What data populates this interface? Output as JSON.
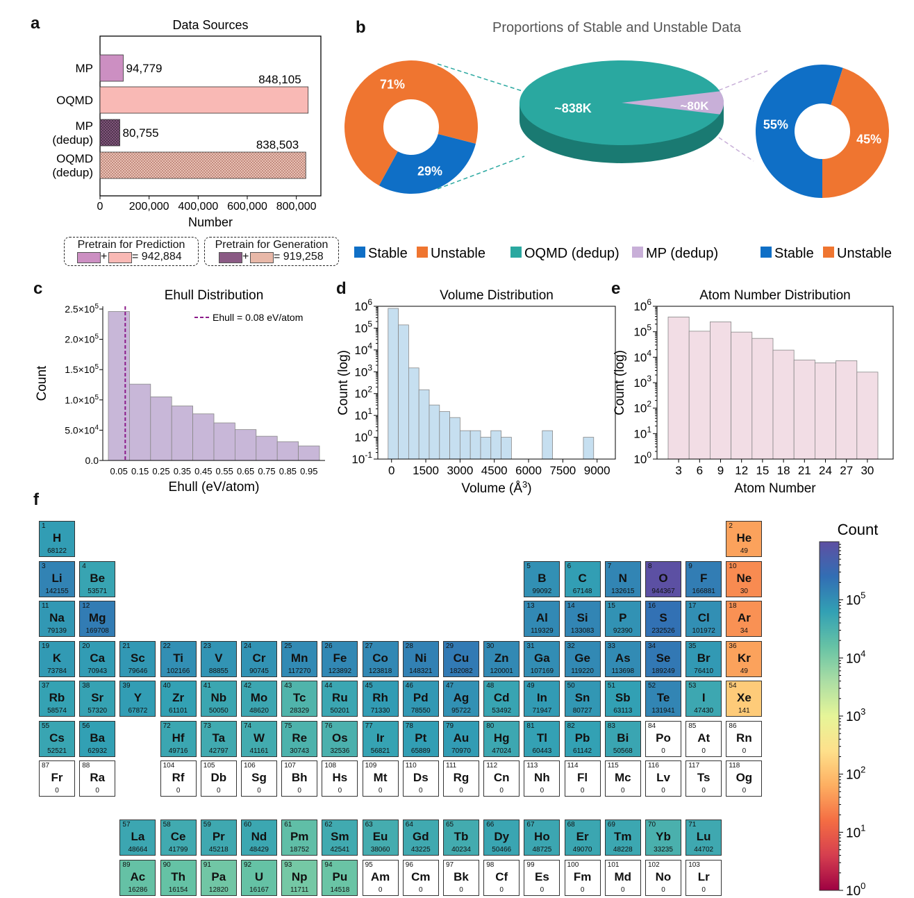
{
  "panel_labels": {
    "a": "a",
    "b": "b",
    "c": "c",
    "d": "d",
    "e": "e",
    "f": "f"
  },
  "chart_data": [
    {
      "id": "a",
      "type": "bar",
      "orientation": "horizontal",
      "title": "Data Sources",
      "categories": [
        "MP",
        "OQMD",
        "MP\n(dedup)",
        "OQMD\n(dedup)"
      ],
      "values": [
        94779,
        848105,
        80755,
        838503
      ],
      "value_labels": [
        "94,779",
        "848,105",
        "80,755",
        "838,503"
      ],
      "colors": [
        "#cc8fc2",
        "#f9b9b5",
        "#8a5a84",
        "#e8b8a8"
      ],
      "xlabel": "Number",
      "xlim": [
        0,
        900000
      ],
      "xticks": [
        0,
        200000,
        400000,
        600000,
        800000
      ],
      "xtick_labels": [
        "0",
        "200,000",
        "400,000",
        "600,000",
        "800,000"
      ],
      "legend": [
        {
          "title": "Pretrain for Prediction",
          "formula": "= 942,884"
        },
        {
          "title": "Pretrain for Generation",
          "formula": "= 919,258"
        }
      ]
    },
    {
      "id": "b",
      "type": "pie",
      "title": "Proportions of Stable and Unstable Data",
      "center": {
        "slices": [
          {
            "name": "OQMD (dedup)",
            "label": "~838K",
            "value": 838503,
            "color": "#2aa8a0"
          },
          {
            "name": "MP (dedup)",
            "label": "~80K",
            "value": 80755,
            "color": "#c8afd8"
          }
        ]
      },
      "left_donut": {
        "slices": [
          {
            "name": "Stable",
            "label": "29%",
            "value": 29,
            "color": "#0f6fc6"
          },
          {
            "name": "Unstable",
            "label": "71%",
            "value": 71,
            "color": "#ef7530"
          }
        ]
      },
      "right_donut": {
        "slices": [
          {
            "name": "Stable",
            "label": "55%",
            "value": 55,
            "color": "#0f6fc6"
          },
          {
            "name": "Unstable",
            "label": "45%",
            "value": 45,
            "color": "#ef7530"
          }
        ]
      },
      "legend": [
        {
          "label": "Stable",
          "color": "#0f6fc6"
        },
        {
          "label": "Unstable",
          "color": "#ef7530"
        },
        {
          "label": "OQMD (dedup)",
          "color": "#2aa8a0"
        },
        {
          "label": "MP (dedup)",
          "color": "#c8afd8"
        },
        {
          "label": "Stable",
          "color": "#0f6fc6"
        },
        {
          "label": "Unstable",
          "color": "#ef7530"
        }
      ]
    },
    {
      "id": "c",
      "type": "bar",
      "title": "Ehull Distribution",
      "xlabel": "Ehull (eV/atom)",
      "ylabel": "Count",
      "categories": [
        "0.05",
        "0.15",
        "0.25",
        "0.35",
        "0.45",
        "0.55",
        "0.65",
        "0.75",
        "0.85",
        "0.95"
      ],
      "values": [
        246000,
        126000,
        105000,
        90000,
        77000,
        62000,
        51000,
        40000,
        31000,
        24000
      ],
      "ylim": [
        0,
        250000
      ],
      "yticks": [
        0,
        50000,
        100000,
        150000,
        200000,
        250000
      ],
      "ytick_labels": [
        {
          "m": "0.0",
          "e": ""
        },
        {
          "m": "5.0×10",
          "e": "4"
        },
        {
          "m": "1.0×10",
          "e": "5"
        },
        {
          "m": "1.5×10",
          "e": "5"
        },
        {
          "m": "2.0×10",
          "e": "5"
        },
        {
          "m": "2.5×10",
          "e": "5"
        }
      ],
      "threshold": {
        "value": 0.08,
        "label": "Ehull = 0.08 eV/atom",
        "color": "#8b1a89"
      },
      "color": "#c8b7d8"
    },
    {
      "id": "d",
      "type": "bar",
      "title": "Volume Distribution",
      "yscale": "log",
      "xlabel": "Volume (Å",
      "xlabel_sup": "3",
      "xlabel_end": ")",
      "ylabel": "Count (log)",
      "bin_edges": [
        -150,
        300,
        750,
        1200,
        1650,
        2100,
        2550,
        3000,
        3450,
        3900,
        4350,
        4800,
        5250,
        5700,
        6150,
        6600,
        7050,
        7500,
        7950,
        8400,
        8850,
        9300
      ],
      "values": [
        800000,
        140000,
        1500,
        150,
        30,
        15,
        8,
        2,
        2,
        1,
        2,
        1,
        0,
        0,
        0,
        2,
        0,
        0,
        0,
        1,
        0
      ],
      "xlim": [
        -600,
        9800
      ],
      "xticks": [
        0,
        1500,
        3000,
        4500,
        6000,
        7500,
        9000
      ],
      "ylim_exp": [
        -1,
        6
      ],
      "color": "#c6dff0"
    },
    {
      "id": "e",
      "type": "bar",
      "title": "Atom Number Distribution",
      "yscale": "log",
      "xlabel": "Atom Number",
      "ylabel": "Count (log)",
      "categories": [
        "3",
        "6",
        "9",
        "12",
        "15",
        "18",
        "21",
        "24",
        "27",
        "30"
      ],
      "values": [
        380000,
        105000,
        245000,
        97000,
        55000,
        19000,
        7800,
        6000,
        7300,
        2600
      ],
      "ylim_exp": [
        0,
        6
      ],
      "color": "#f2dde5"
    },
    {
      "id": "f",
      "type": "heatmap",
      "title": "Count",
      "colorbar": {
        "label": "Count",
        "scale": "log",
        "min_exp": 0,
        "max_exp": 6
      },
      "elements": [
        [
          1,
          "H",
          1,
          1,
          68122
        ],
        [
          2,
          "He",
          1,
          18,
          49
        ],
        [
          3,
          "Li",
          2,
          1,
          142155
        ],
        [
          4,
          "Be",
          2,
          2,
          53571
        ],
        [
          5,
          "B",
          2,
          13,
          99092
        ],
        [
          6,
          "C",
          2,
          14,
          67148
        ],
        [
          7,
          "N",
          2,
          15,
          132615
        ],
        [
          8,
          "O",
          2,
          16,
          944367
        ],
        [
          9,
          "F",
          2,
          17,
          166881
        ],
        [
          10,
          "Ne",
          2,
          18,
          30
        ],
        [
          11,
          "Na",
          3,
          1,
          79139
        ],
        [
          12,
          "Mg",
          3,
          2,
          169708
        ],
        [
          13,
          "Al",
          3,
          13,
          119329
        ],
        [
          14,
          "Si",
          3,
          14,
          133083
        ],
        [
          15,
          "P",
          3,
          15,
          92390
        ],
        [
          16,
          "S",
          3,
          16,
          232526
        ],
        [
          17,
          "Cl",
          3,
          17,
          101972
        ],
        [
          18,
          "Ar",
          3,
          18,
          34
        ],
        [
          19,
          "K",
          4,
          1,
          73784
        ],
        [
          20,
          "Ca",
          4,
          2,
          70943
        ],
        [
          21,
          "Sc",
          4,
          3,
          79646
        ],
        [
          22,
          "Ti",
          4,
          4,
          102166
        ],
        [
          23,
          "V",
          4,
          5,
          88855
        ],
        [
          24,
          "Cr",
          4,
          6,
          90745
        ],
        [
          25,
          "Mn",
          4,
          7,
          117270
        ],
        [
          26,
          "Fe",
          4,
          8,
          123892
        ],
        [
          27,
          "Co",
          4,
          9,
          123818
        ],
        [
          28,
          "Ni",
          4,
          10,
          148321
        ],
        [
          29,
          "Cu",
          4,
          11,
          182082
        ],
        [
          30,
          "Zn",
          4,
          12,
          120001
        ],
        [
          31,
          "Ga",
          4,
          13,
          107169
        ],
        [
          32,
          "Ge",
          4,
          14,
          119220
        ],
        [
          33,
          "As",
          4,
          15,
          113698
        ],
        [
          34,
          "Se",
          4,
          16,
          189249
        ],
        [
          35,
          "Br",
          4,
          17,
          76410
        ],
        [
          36,
          "Kr",
          4,
          18,
          49
        ],
        [
          37,
          "Rb",
          5,
          1,
          58574
        ],
        [
          38,
          "Sr",
          5,
          2,
          57320
        ],
        [
          39,
          "Y",
          5,
          3,
          67872
        ],
        [
          40,
          "Zr",
          5,
          4,
          61101
        ],
        [
          41,
          "Nb",
          5,
          5,
          50050
        ],
        [
          42,
          "Mo",
          5,
          6,
          48620
        ],
        [
          43,
          "Tc",
          5,
          7,
          28329
        ],
        [
          44,
          "Ru",
          5,
          8,
          50201
        ],
        [
          45,
          "Rh",
          5,
          9,
          71330
        ],
        [
          46,
          "Pd",
          5,
          10,
          78550
        ],
        [
          47,
          "Ag",
          5,
          11,
          95722
        ],
        [
          48,
          "Cd",
          5,
          12,
          53492
        ],
        [
          49,
          "In",
          5,
          13,
          71947
        ],
        [
          50,
          "Sn",
          5,
          14,
          80727
        ],
        [
          51,
          "Sb",
          5,
          15,
          63113
        ],
        [
          52,
          "Te",
          5,
          16,
          131941
        ],
        [
          53,
          "I",
          5,
          17,
          47430
        ],
        [
          54,
          "Xe",
          5,
          18,
          141
        ],
        [
          55,
          "Cs",
          6,
          1,
          52521
        ],
        [
          56,
          "Ba",
          6,
          2,
          62932
        ],
        [
          72,
          "Hf",
          6,
          4,
          49716
        ],
        [
          73,
          "Ta",
          6,
          5,
          42797
        ],
        [
          74,
          "W",
          6,
          6,
          41161
        ],
        [
          75,
          "Re",
          6,
          7,
          30743
        ],
        [
          76,
          "Os",
          6,
          8,
          32536
        ],
        [
          77,
          "Ir",
          6,
          9,
          56821
        ],
        [
          78,
          "Pt",
          6,
          10,
          65889
        ],
        [
          79,
          "Au",
          6,
          11,
          70970
        ],
        [
          80,
          "Hg",
          6,
          12,
          47024
        ],
        [
          81,
          "Tl",
          6,
          13,
          60443
        ],
        [
          82,
          "Pb",
          6,
          14,
          61142
        ],
        [
          83,
          "Bi",
          6,
          15,
          50568
        ],
        [
          84,
          "Po",
          6,
          16,
          0
        ],
        [
          85,
          "At",
          6,
          17,
          0
        ],
        [
          86,
          "Rn",
          6,
          18,
          0
        ],
        [
          87,
          "Fr",
          7,
          1,
          0
        ],
        [
          88,
          "Ra",
          7,
          2,
          0
        ],
        [
          104,
          "Rf",
          7,
          4,
          0
        ],
        [
          105,
          "Db",
          7,
          5,
          0
        ],
        [
          106,
          "Sg",
          7,
          6,
          0
        ],
        [
          107,
          "Bh",
          7,
          7,
          0
        ],
        [
          108,
          "Hs",
          7,
          8,
          0
        ],
        [
          109,
          "Mt",
          7,
          9,
          0
        ],
        [
          110,
          "Ds",
          7,
          10,
          0
        ],
        [
          111,
          "Rg",
          7,
          11,
          0
        ],
        [
          112,
          "Cn",
          7,
          12,
          0
        ],
        [
          113,
          "Nh",
          7,
          13,
          0
        ],
        [
          114,
          "Fl",
          7,
          14,
          0
        ],
        [
          115,
          "Mc",
          7,
          15,
          0
        ],
        [
          116,
          "Lv",
          7,
          16,
          0
        ],
        [
          117,
          "Ts",
          7,
          17,
          0
        ],
        [
          118,
          "Og",
          7,
          18,
          0
        ],
        [
          57,
          "La",
          9,
          3,
          48664
        ],
        [
          58,
          "Ce",
          9,
          4,
          41799
        ],
        [
          59,
          "Pr",
          9,
          5,
          45218
        ],
        [
          60,
          "Nd",
          9,
          6,
          48429
        ],
        [
          61,
          "Pm",
          9,
          7,
          18752
        ],
        [
          62,
          "Sm",
          9,
          8,
          42541
        ],
        [
          63,
          "Eu",
          9,
          9,
          38060
        ],
        [
          64,
          "Gd",
          9,
          10,
          43225
        ],
        [
          65,
          "Tb",
          9,
          11,
          40234
        ],
        [
          66,
          "Dy",
          9,
          12,
          50466
        ],
        [
          67,
          "Ho",
          9,
          13,
          48725
        ],
        [
          68,
          "Er",
          9,
          14,
          49070
        ],
        [
          69,
          "Tm",
          9,
          15,
          48228
        ],
        [
          70,
          "Yb",
          9,
          16,
          33235
        ],
        [
          71,
          "Lu",
          9,
          17,
          44702
        ],
        [
          89,
          "Ac",
          10,
          3,
          16286
        ],
        [
          90,
          "Th",
          10,
          4,
          16154
        ],
        [
          91,
          "Pa",
          10,
          5,
          12820
        ],
        [
          92,
          "U",
          10,
          6,
          16167
        ],
        [
          93,
          "Np",
          10,
          7,
          11711
        ],
        [
          94,
          "Pu",
          10,
          8,
          14518
        ],
        [
          95,
          "Am",
          10,
          9,
          0
        ],
        [
          96,
          "Cm",
          10,
          10,
          0
        ],
        [
          97,
          "Bk",
          10,
          11,
          0
        ],
        [
          98,
          "Cf",
          10,
          12,
          0
        ],
        [
          99,
          "Es",
          10,
          13,
          0
        ],
        [
          100,
          "Fm",
          10,
          14,
          0
        ],
        [
          101,
          "Md",
          10,
          15,
          0
        ],
        [
          102,
          "No",
          10,
          16,
          0
        ],
        [
          103,
          "Lr",
          10,
          17,
          0
        ]
      ]
    }
  ]
}
